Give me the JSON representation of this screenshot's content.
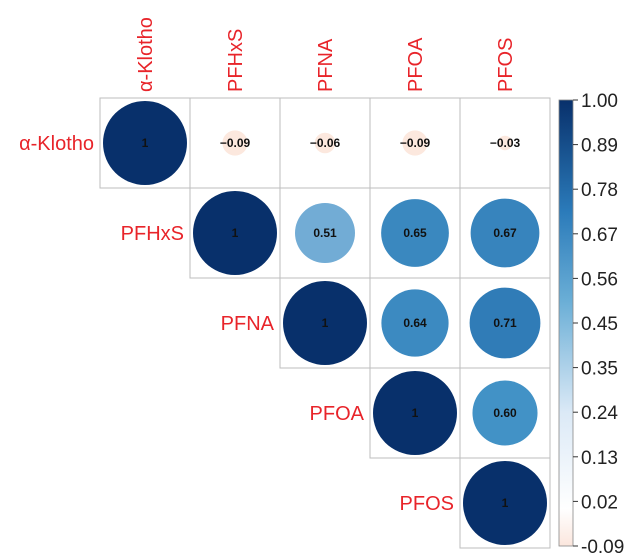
{
  "chart_data": {
    "type": "heatmap",
    "title": "",
    "variables": [
      "α-Klotho",
      "PFHxS",
      "PFNA",
      "PFOA",
      "PFOS"
    ],
    "layout": "upper-triangle",
    "matrix": [
      [
        1,
        -0.09,
        -0.06,
        -0.09,
        -0.03
      ],
      [
        null,
        1,
        0.51,
        0.65,
        0.67
      ],
      [
        null,
        null,
        1,
        0.64,
        0.71
      ],
      [
        null,
        null,
        null,
        1,
        0.6
      ],
      [
        null,
        null,
        null,
        null,
        1
      ]
    ],
    "cell_labels": [
      [
        "1",
        "−0.09",
        "−0.06",
        "−0.09",
        "−0.03"
      ],
      [
        null,
        "1",
        "0.51",
        "0.65",
        "0.67"
      ],
      [
        null,
        null,
        "1",
        "0.64",
        "0.71"
      ],
      [
        null,
        null,
        null,
        "1",
        "0.60"
      ],
      [
        null,
        null,
        null,
        null,
        "1"
      ]
    ],
    "colorbar": {
      "range": [
        -0.09,
        1.0
      ],
      "ticks": [
        "1.00",
        "0.89",
        "0.78",
        "0.67",
        "0.56",
        "0.45",
        "0.35",
        "0.24",
        "0.13",
        "0.02",
        "-0.09"
      ]
    },
    "colors": {
      "label_color": "#e8242a",
      "max_color": "#08306b",
      "min_color": "#fbe6dd",
      "grid_color": "#bdbdbd"
    }
  }
}
